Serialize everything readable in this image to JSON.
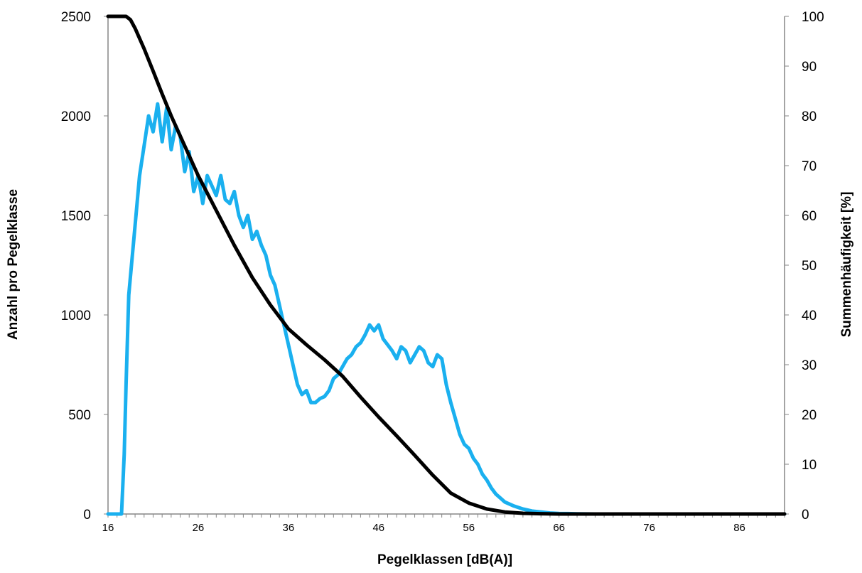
{
  "chart_data": {
    "type": "line",
    "title": "",
    "xlabel": "Pegelklassen [dB(A)]",
    "ylabel_left": "Anzahl pro Pegelklasse",
    "ylabel_right": "Summenhäufigkeit [%]",
    "xlim": [
      16,
      91
    ],
    "ylim_left": [
      0,
      2500
    ],
    "ylim_right": [
      0,
      100
    ],
    "x_tick_labels": [
      "16",
      "26",
      "36",
      "46",
      "56",
      "66",
      "76",
      "86"
    ],
    "y_left_tick_labels": [
      "0",
      "500",
      "1000",
      "1500",
      "2000",
      "2500"
    ],
    "y_right_tick_labels": [
      "0",
      "10",
      "20",
      "30",
      "40",
      "50",
      "60",
      "70",
      "80",
      "90",
      "100"
    ],
    "grid": false,
    "legend": "none",
    "colors": {
      "histogram": "#1ab0ef",
      "cumulative": "#000000"
    },
    "series": [
      {
        "axis": "left",
        "color": "#1ab0ef",
        "x": [
          16,
          17,
          17.5,
          17.8,
          18,
          18.3,
          18.6,
          19,
          19.5,
          20,
          20.5,
          21,
          21.5,
          22,
          22.5,
          23,
          23.5,
          24,
          24.5,
          25,
          25.5,
          26,
          26.5,
          27,
          27.5,
          28,
          28.5,
          29,
          29.5,
          30,
          30.5,
          31,
          31.5,
          32,
          32.5,
          33,
          33.5,
          34,
          34.5,
          35,
          35.5,
          36,
          36.5,
          37,
          37.5,
          38,
          38.5,
          39,
          39.5,
          40,
          40.5,
          41,
          41.5,
          42,
          42.5,
          43,
          43.5,
          44,
          44.5,
          45,
          45.5,
          46,
          46.5,
          47,
          47.5,
          48,
          48.5,
          49,
          49.5,
          50,
          50.5,
          51,
          51.5,
          52,
          52.5,
          53,
          53.5,
          54,
          54.5,
          55,
          55.5,
          56,
          56.5,
          57,
          57.5,
          58,
          58.5,
          59,
          59.5,
          60,
          61,
          62,
          63,
          64,
          65,
          66,
          67,
          68,
          70,
          75,
          80,
          85,
          91
        ],
        "values": [
          0,
          0,
          0,
          300,
          650,
          1100,
          1250,
          1450,
          1700,
          1850,
          2000,
          1920,
          2060,
          1870,
          2040,
          1830,
          1950,
          1900,
          1720,
          1820,
          1620,
          1700,
          1560,
          1700,
          1650,
          1600,
          1700,
          1580,
          1560,
          1620,
          1500,
          1440,
          1500,
          1380,
          1420,
          1350,
          1300,
          1200,
          1150,
          1050,
          950,
          850,
          750,
          650,
          600,
          620,
          560,
          560,
          580,
          590,
          620,
          680,
          700,
          740,
          780,
          800,
          840,
          860,
          900,
          950,
          920,
          950,
          880,
          850,
          820,
          780,
          840,
          820,
          760,
          800,
          840,
          820,
          760,
          740,
          800,
          780,
          650,
          560,
          480,
          400,
          350,
          330,
          280,
          250,
          200,
          170,
          130,
          100,
          80,
          60,
          40,
          25,
          15,
          10,
          5,
          3,
          2,
          1,
          0,
          0,
          0,
          0,
          0
        ]
      },
      {
        "axis": "right",
        "color": "#000000",
        "x": [
          16,
          18,
          18.5,
          19,
          20,
          21,
          22,
          23,
          24,
          25,
          26,
          28,
          30,
          32,
          34,
          36,
          38,
          40,
          42,
          44,
          46,
          48,
          50,
          52,
          54,
          56,
          58,
          60,
          62,
          64,
          66,
          70,
          80,
          91
        ],
        "values": [
          100,
          100,
          99.3,
          97.6,
          93.5,
          89,
          84.4,
          80,
          76,
          72,
          68,
          61,
          54,
          47.5,
          42,
          37.2,
          34,
          31,
          27.7,
          23.5,
          19.5,
          15.7,
          11.8,
          7.8,
          4.2,
          2.2,
          1,
          0.4,
          0.15,
          0.05,
          0,
          0,
          0,
          0
        ]
      }
    ]
  }
}
